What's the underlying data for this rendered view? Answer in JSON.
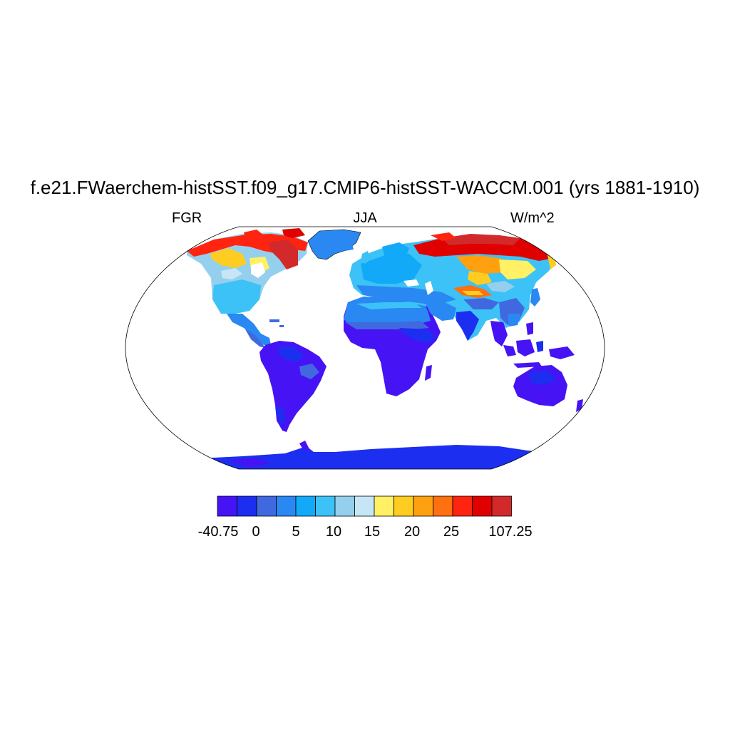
{
  "title": "f.e21.FWaerchem-histSST.f09_g17.CMIP6-histSST-WACCM.001 (yrs 1881-1910)",
  "left_string": "FGR",
  "center_string": "JJA",
  "right_string": "W/m^2",
  "colorbar": {
    "colors": [
      "#4614f4",
      "#1c2ef0",
      "#4069e0",
      "#2a88f2",
      "#12aaf8",
      "#3cc2f6",
      "#94d0ee",
      "#c6e6f6",
      "#fff064",
      "#ffcc22",
      "#ffa010",
      "#ff7010",
      "#ff2410",
      "#e00000",
      "#d22a2a"
    ],
    "labels": [
      "-40.75",
      "0",
      "5",
      "10",
      "15",
      "20",
      "25",
      "107.25"
    ]
  }
}
